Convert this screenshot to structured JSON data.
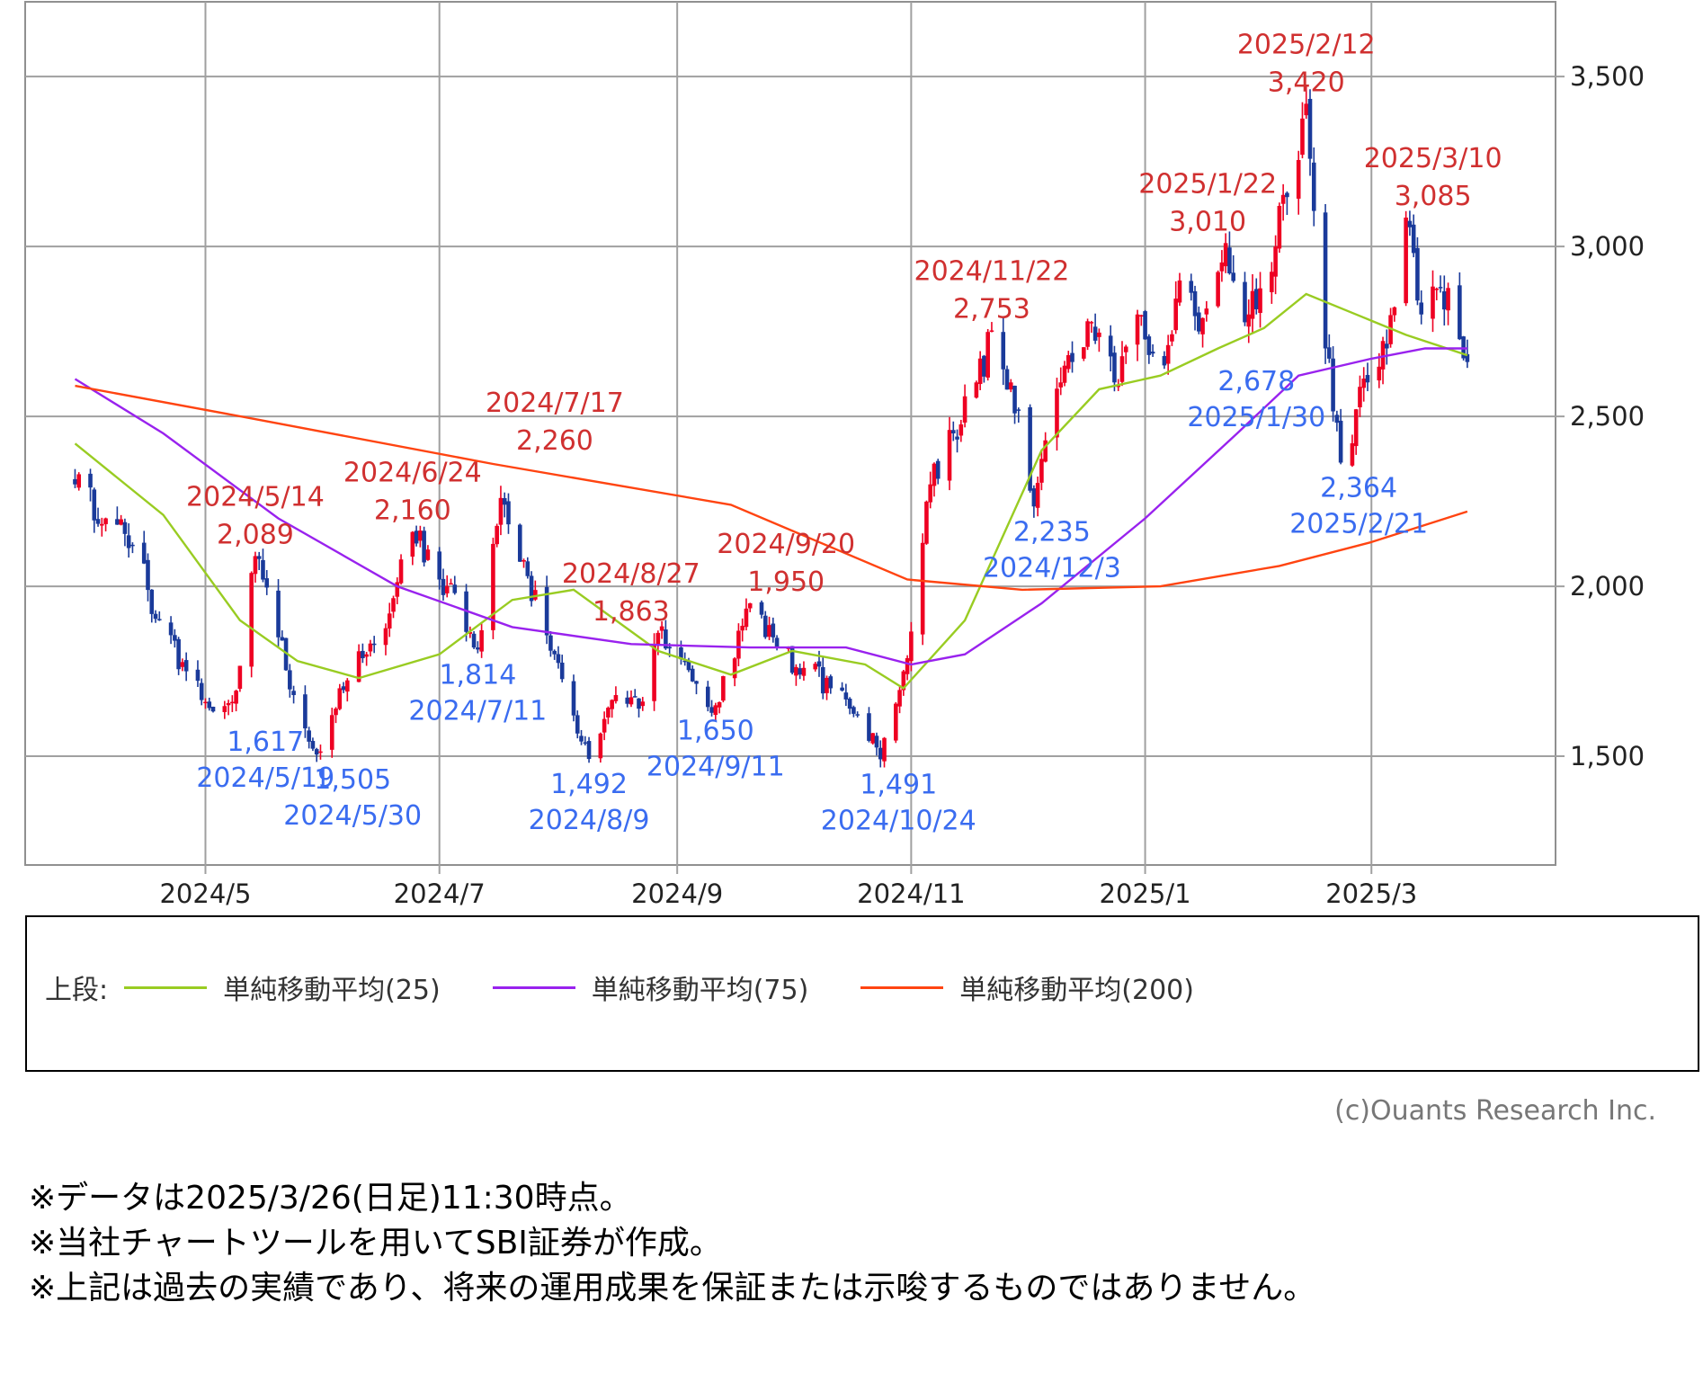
{
  "chart_data": {
    "type": "candlestick",
    "y_axis": {
      "ticks": [
        1500,
        2000,
        2500,
        3000,
        3500
      ],
      "tick_labels": [
        "1,500",
        "2,000",
        "2,500",
        "3,000",
        "3,500"
      ],
      "ylim": [
        1180,
        3720
      ],
      "position": "right"
    },
    "x_axis": {
      "tick_labels": [
        "2024/5",
        "2024/7",
        "2024/9",
        "2024/11",
        "2025/1",
        "2025/3"
      ],
      "tick_dates": [
        "2024-05-01",
        "2024-07-01",
        "2024-09-01",
        "2024-11-01",
        "2025-01-01",
        "2025-03-01"
      ],
      "xlim": [
        "2024-03-15",
        "2025-04-18"
      ]
    },
    "grid": true,
    "colors": {
      "up": "#ee0022",
      "down": "#1a3a9a",
      "high_label": "#d03030",
      "low_label": "#3a6cf0",
      "sma25": "#99cc22",
      "sma75": "#9922ee",
      "sma200": "#ff4411",
      "grid": "#a0a0a0"
    },
    "price_path": [
      [
        "2024-03-28",
        2300
      ],
      [
        "2024-04-05",
        2200
      ],
      [
        "2024-04-12",
        2120
      ],
      [
        "2024-04-19",
        1900
      ],
      [
        "2024-04-26",
        1750
      ],
      [
        "2024-05-01",
        1660
      ],
      [
        "2024-05-08",
        1660
      ],
      [
        "2024-05-14",
        2089
      ],
      [
        "2024-05-20",
        1850
      ],
      [
        "2024-05-24",
        1680
      ],
      [
        "2024-05-30",
        1505
      ],
      [
        "2024-06-05",
        1700
      ],
      [
        "2024-06-12",
        1800
      ],
      [
        "2024-06-18",
        1920
      ],
      [
        "2024-06-24",
        2160
      ],
      [
        "2024-07-01",
        2020
      ],
      [
        "2024-07-05",
        1980
      ],
      [
        "2024-07-11",
        1814
      ],
      [
        "2024-07-17",
        2260
      ],
      [
        "2024-07-24",
        2030
      ],
      [
        "2024-07-31",
        1800
      ],
      [
        "2024-08-05",
        1620
      ],
      [
        "2024-08-09",
        1492
      ],
      [
        "2024-08-16",
        1680
      ],
      [
        "2024-08-22",
        1640
      ],
      [
        "2024-08-27",
        1863
      ],
      [
        "2024-09-03",
        1780
      ],
      [
        "2024-09-11",
        1650
      ],
      [
        "2024-09-20",
        1950
      ],
      [
        "2024-09-27",
        1820
      ],
      [
        "2024-10-04",
        1760
      ],
      [
        "2024-10-11",
        1700
      ],
      [
        "2024-10-18",
        1620
      ],
      [
        "2024-10-24",
        1491
      ],
      [
        "2024-10-30",
        1750
      ],
      [
        "2024-11-06",
        2300
      ],
      [
        "2024-11-12",
        2450
      ],
      [
        "2024-11-18",
        2600
      ],
      [
        "2024-11-22",
        2753
      ],
      [
        "2024-11-27",
        2600
      ],
      [
        "2024-12-03",
        2235
      ],
      [
        "2024-12-10",
        2600
      ],
      [
        "2024-12-17",
        2780
      ],
      [
        "2024-12-24",
        2600
      ],
      [
        "2024-12-30",
        2800
      ],
      [
        "2025-01-06",
        2650
      ],
      [
        "2025-01-10",
        2900
      ],
      [
        "2025-01-15",
        2750
      ],
      [
        "2025-01-22",
        3010
      ],
      [
        "2025-01-28",
        2800
      ],
      [
        "2025-02-04",
        3000
      ],
      [
        "2025-02-12",
        3420
      ],
      [
        "2025-02-17",
        2700
      ],
      [
        "2025-02-21",
        2364
      ],
      [
        "2025-02-28",
        2600
      ],
      [
        "2025-03-05",
        2700
      ],
      [
        "2025-03-10",
        3085
      ],
      [
        "2025-03-14",
        2800
      ],
      [
        "2025-03-19",
        2880
      ],
      [
        "2025-03-26",
        2660
      ]
    ],
    "sma": [
      {
        "name": "単純移動平均(25)",
        "color": "#99cc22",
        "points": [
          [
            "2024-03-28",
            2420
          ],
          [
            "2024-04-20",
            2210
          ],
          [
            "2024-05-10",
            1900
          ],
          [
            "2024-05-25",
            1780
          ],
          [
            "2024-06-10",
            1730
          ],
          [
            "2024-07-01",
            1800
          ],
          [
            "2024-07-20",
            1960
          ],
          [
            "2024-08-05",
            1990
          ],
          [
            "2024-08-27",
            1810
          ],
          [
            "2024-09-15",
            1740
          ],
          [
            "2024-10-01",
            1810
          ],
          [
            "2024-10-20",
            1770
          ],
          [
            "2024-10-30",
            1700
          ],
          [
            "2024-11-15",
            1900
          ],
          [
            "2024-12-05",
            2400
          ],
          [
            "2024-12-20",
            2580
          ],
          [
            "2025-01-05",
            2620
          ],
          [
            "2025-01-20",
            2700
          ],
          [
            "2025-02-01",
            2760
          ],
          [
            "2025-02-12",
            2860
          ],
          [
            "2025-02-25",
            2800
          ],
          [
            "2025-03-10",
            2740
          ],
          [
            "2025-03-18",
            2710
          ],
          [
            "2025-03-26",
            2680
          ]
        ]
      },
      {
        "name": "単純移動平均(75)",
        "color": "#9922ee",
        "points": [
          [
            "2024-03-28",
            2610
          ],
          [
            "2024-04-20",
            2450
          ],
          [
            "2024-05-20",
            2200
          ],
          [
            "2024-06-20",
            2000
          ],
          [
            "2024-07-20",
            1880
          ],
          [
            "2024-08-20",
            1830
          ],
          [
            "2024-09-20",
            1820
          ],
          [
            "2024-10-15",
            1820
          ],
          [
            "2024-11-01",
            1770
          ],
          [
            "2024-11-15",
            1800
          ],
          [
            "2024-12-05",
            1950
          ],
          [
            "2025-01-01",
            2200
          ],
          [
            "2025-01-25",
            2450
          ],
          [
            "2025-02-10",
            2620
          ],
          [
            "2025-03-01",
            2670
          ],
          [
            "2025-03-15",
            2700
          ],
          [
            "2025-03-26",
            2700
          ]
        ]
      },
      {
        "name": "単純移動平均(200)",
        "color": "#ff4411",
        "points": [
          [
            "2024-03-28",
            2590
          ],
          [
            "2024-05-15",
            2490
          ],
          [
            "2024-07-15",
            2360
          ],
          [
            "2024-09-15",
            2240
          ],
          [
            "2024-10-31",
            2020
          ],
          [
            "2024-11-30",
            1990
          ],
          [
            "2025-01-05",
            2000
          ],
          [
            "2025-02-05",
            2060
          ],
          [
            "2025-03-01",
            2130
          ],
          [
            "2025-03-26",
            2220
          ]
        ]
      }
    ],
    "annotations": [
      {
        "kind": "high",
        "date": "2024/5/14",
        "value": "2,089",
        "at": [
          "2024-05-14",
          2089
        ]
      },
      {
        "kind": "high",
        "date": "2024/6/24",
        "value": "2,160",
        "at": [
          "2024-06-24",
          2160
        ]
      },
      {
        "kind": "high",
        "date": "2024/7/17",
        "value": "2,260",
        "at": [
          "2024-07-17",
          2260
        ]
      },
      {
        "kind": "high",
        "date": "2024/8/27",
        "value": "1,863",
        "at": [
          "2024-08-27",
          1863
        ]
      },
      {
        "kind": "high",
        "date": "2024/9/20",
        "value": "1,950",
        "at": [
          "2024-09-20",
          1950
        ]
      },
      {
        "kind": "high",
        "date": "2024/11/22",
        "value": "2,753",
        "at": [
          "2024-11-22",
          2753
        ]
      },
      {
        "kind": "high",
        "date": "2025/1/22",
        "value": "3,010",
        "at": [
          "2025-01-22",
          3010
        ]
      },
      {
        "kind": "high",
        "date": "2025/2/12",
        "value": "3,420",
        "at": [
          "2025-02-12",
          3420
        ]
      },
      {
        "kind": "high",
        "date": "2025/3/10",
        "value": "3,085",
        "at": [
          "2025-03-10",
          3085
        ]
      },
      {
        "kind": "low",
        "date": "2024/5/19",
        "value": "1,617",
        "at": [
          "2024-05-19",
          1617
        ]
      },
      {
        "kind": "low",
        "date": "2024/5/30",
        "value": "1,505",
        "at": [
          "2024-05-30",
          1505
        ]
      },
      {
        "kind": "low",
        "date": "2024/7/11",
        "value": "1,814",
        "at": [
          "2024-07-11",
          1814
        ]
      },
      {
        "kind": "low",
        "date": "2024/8/9",
        "value": "1,492",
        "at": [
          "2024-08-09",
          1492
        ]
      },
      {
        "kind": "low",
        "date": "2024/9/11",
        "value": "1,650",
        "at": [
          "2024-09-11",
          1650
        ]
      },
      {
        "kind": "low",
        "date": "2024/10/24",
        "value": "1,491",
        "at": [
          "2024-10-24",
          1491
        ]
      },
      {
        "kind": "low",
        "date": "2024/12/3",
        "value": "2,235",
        "at": [
          "2024-12-03",
          2235
        ]
      },
      {
        "kind": "low",
        "date": "2025/1/30",
        "value": "2,678",
        "at": [
          "2025-01-30",
          2678
        ]
      },
      {
        "kind": "low",
        "date": "2025/2/21",
        "value": "2,364",
        "at": [
          "2025-02-21",
          2364
        ]
      }
    ]
  },
  "legend": {
    "prefix": "上段:",
    "items": [
      {
        "label": "単純移動平均(25)",
        "color": "#99cc22"
      },
      {
        "label": "単純移動平均(75)",
        "color": "#9922ee"
      },
      {
        "label": "単純移動平均(200)",
        "color": "#ff4411"
      }
    ]
  },
  "copyright": "(c)Ouants Research Inc.",
  "notes": [
    "※データは2025/3/26(日足)11:30時点。",
    "※当社チャートツールを用いてSBI証券が作成。",
    "※上記は過去の実績であり、将来の運用成果を保証または示唆するものではありません。"
  ]
}
